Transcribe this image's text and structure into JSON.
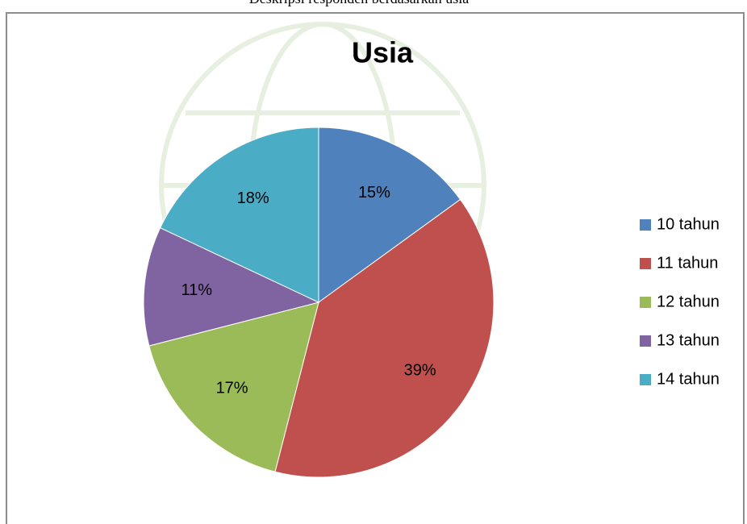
{
  "caption": "Deskripsi responden berdasarkan usia",
  "chart_data": {
    "type": "pie",
    "title": "Usia",
    "categories": [
      "10 tahun",
      "11 tahun",
      "12 tahun",
      "13 tahun",
      "14 tahun"
    ],
    "values": [
      15,
      39,
      17,
      11,
      18
    ],
    "value_labels": [
      "15%",
      "39%",
      "17%",
      "11%",
      "18%"
    ],
    "colors": [
      "#4f81bd",
      "#c0504d",
      "#9bbb59",
      "#8064a2",
      "#4bacc6"
    ],
    "legend": "right"
  }
}
